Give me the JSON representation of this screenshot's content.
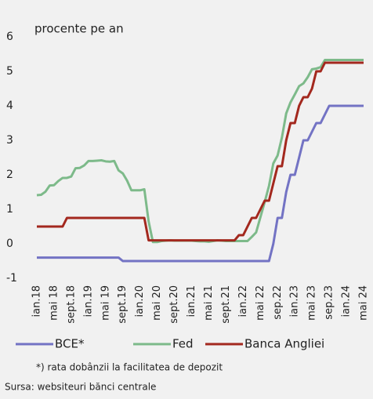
{
  "chart_data": {
    "type": "line",
    "subtitle": "procente pe an",
    "categories": [
      "ian.18",
      null,
      null,
      null,
      "mai 18",
      null,
      null,
      null,
      "sept.18",
      null,
      null,
      null,
      "ian.19",
      null,
      null,
      null,
      "mai 19",
      null,
      null,
      null,
      "sept.19",
      null,
      null,
      null,
      "ian.20",
      null,
      null,
      null,
      "mai 20",
      null,
      null,
      null,
      "sept.20",
      null,
      null,
      null,
      "ian.21",
      null,
      null,
      null,
      "mai 21",
      null,
      null,
      null,
      "sept.21",
      null,
      null,
      null,
      "ian.22",
      null,
      null,
      null,
      "mai 22",
      null,
      null,
      null,
      "sep.22",
      null,
      null,
      null,
      "ian.23",
      null,
      null,
      null,
      "mai 23",
      null,
      null,
      null,
      "sep.23",
      null,
      null,
      null,
      "ian.24",
      null,
      null,
      null,
      "mai 24"
    ],
    "series": [
      {
        "name": "BCE*",
        "color": "#7373c4",
        "values": [
          -0.4,
          -0.4,
          -0.4,
          -0.4,
          -0.4,
          -0.4,
          -0.4,
          -0.4,
          -0.4,
          -0.4,
          -0.4,
          -0.4,
          -0.4,
          -0.4,
          -0.4,
          -0.4,
          -0.4,
          -0.4,
          -0.4,
          -0.4,
          -0.5,
          -0.5,
          -0.5,
          -0.5,
          -0.5,
          -0.5,
          -0.5,
          -0.5,
          -0.5,
          -0.5,
          -0.5,
          -0.5,
          -0.5,
          -0.5,
          -0.5,
          -0.5,
          -0.5,
          -0.5,
          -0.5,
          -0.5,
          -0.5,
          -0.5,
          -0.5,
          -0.5,
          -0.5,
          -0.5,
          -0.5,
          -0.5,
          -0.5,
          -0.5,
          -0.5,
          -0.5,
          -0.5,
          -0.5,
          -0.5,
          0,
          0.75,
          0.75,
          1.5,
          2,
          2,
          2.5,
          3,
          3,
          3.25,
          3.5,
          3.5,
          3.75,
          4,
          4,
          4,
          4,
          4,
          4,
          4,
          4,
          4
        ]
      },
      {
        "name": "Fed",
        "color": "#7dba8a",
        "values": [
          1.41,
          1.42,
          1.51,
          1.69,
          1.7,
          1.82,
          1.91,
          1.91,
          1.95,
          2.19,
          2.2,
          2.27,
          2.4,
          2.4,
          2.41,
          2.42,
          2.39,
          2.38,
          2.4,
          2.13,
          2.04,
          1.83,
          1.55,
          1.55,
          1.55,
          1.58,
          0.65,
          0.05,
          0.05,
          0.08,
          0.09,
          0.1,
          0.09,
          0.09,
          0.09,
          0.09,
          0.09,
          0.08,
          0.07,
          0.07,
          0.06,
          0.08,
          0.1,
          0.09,
          0.08,
          0.08,
          0.08,
          0.08,
          0.08,
          0.08,
          0.2,
          0.33,
          0.77,
          1.21,
          1.68,
          2.33,
          2.56,
          3.08,
          3.78,
          4.1,
          4.33,
          4.57,
          4.65,
          4.83,
          5.06,
          5.08,
          5.12,
          5.33,
          5.33,
          5.33,
          5.33,
          5.33,
          5.33,
          5.33,
          5.33,
          5.33,
          5.33
        ]
      },
      {
        "name": "Banca Angliei",
        "color": "#a3281e",
        "values": [
          0.5,
          0.5,
          0.5,
          0.5,
          0.5,
          0.5,
          0.5,
          0.75,
          0.75,
          0.75,
          0.75,
          0.75,
          0.75,
          0.75,
          0.75,
          0.75,
          0.75,
          0.75,
          0.75,
          0.75,
          0.75,
          0.75,
          0.75,
          0.75,
          0.75,
          0.75,
          0.1,
          0.1,
          0.1,
          0.1,
          0.1,
          0.1,
          0.1,
          0.1,
          0.1,
          0.1,
          0.1,
          0.1,
          0.1,
          0.1,
          0.1,
          0.1,
          0.1,
          0.1,
          0.1,
          0.1,
          0.1,
          0.25,
          0.25,
          0.5,
          0.75,
          0.75,
          1,
          1.25,
          1.25,
          1.75,
          2.25,
          2.25,
          3,
          3.5,
          3.5,
          4,
          4.25,
          4.25,
          4.5,
          5,
          5,
          5.25,
          5.25,
          5.25,
          5.25,
          5.25,
          5.25,
          5.25,
          5.25,
          5.25,
          5.25
        ]
      }
    ],
    "ylim": [
      -1,
      6
    ],
    "yticks": [
      -1,
      0,
      1,
      2,
      3,
      4,
      5,
      6
    ],
    "grid": false,
    "footnote": "*) rata dobânzii la facilitatea de depozit",
    "source": "Sursa: websiteuri bănci centrale"
  }
}
